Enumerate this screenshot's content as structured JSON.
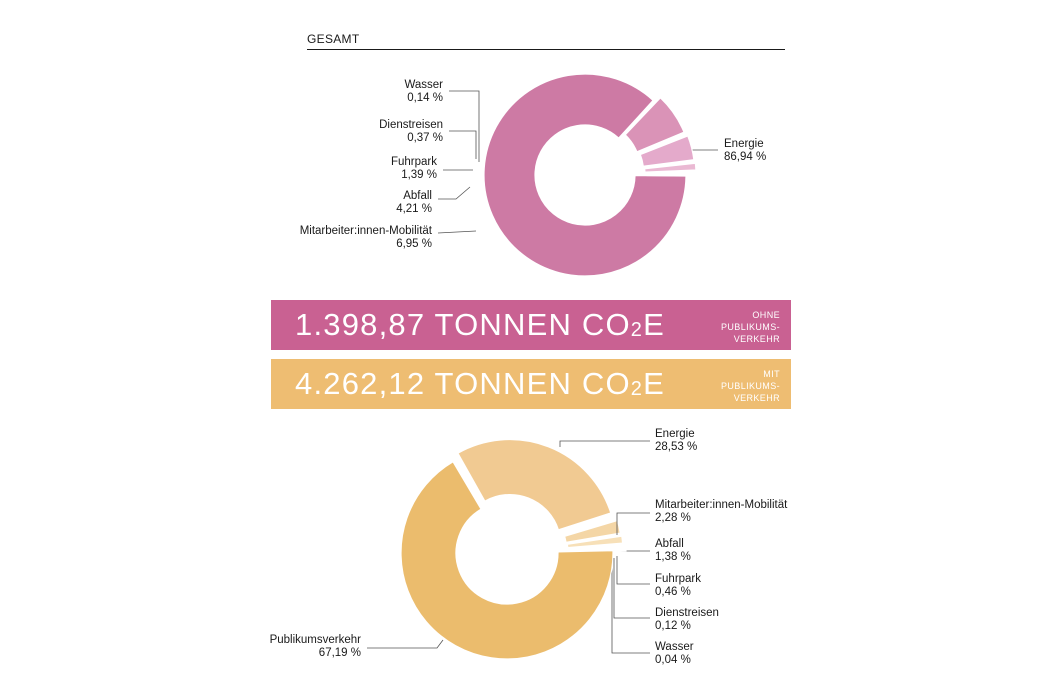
{
  "header": {
    "title": "GESAMT"
  },
  "banners": {
    "ohne": {
      "value": "1.398,87 TONNEN CO",
      "sub": "2",
      "suffix": "E",
      "note": [
        "OHNE",
        "PUBLIKUMS-",
        "VERKEHR"
      ],
      "color": "#c96192"
    },
    "mit": {
      "value": "4.262,12 TONNEN CO",
      "sub": "2",
      "suffix": "E",
      "note": [
        "MIT",
        "PUBLIKUMS-",
        "VERKEHR"
      ],
      "color": "#eebd72"
    }
  },
  "chart_data": [
    {
      "type": "pie",
      "title": "",
      "series": [
        {
          "name": "Energie",
          "label": "86,94 %",
          "value": 86.94,
          "color": "#cd7aa4"
        },
        {
          "name": "Mitarbeiter:innen-Mobilität",
          "label": "6,95 %",
          "value": 6.95,
          "color": "#da93b7"
        },
        {
          "name": "Abfall",
          "label": "4,21 %",
          "value": 4.21,
          "color": "#e4aacb"
        },
        {
          "name": "Fuhrpark",
          "label": "1,39 %",
          "value": 1.39,
          "color": "#eab9d3"
        },
        {
          "name": "Dienstreisen",
          "label": "0,37 %",
          "value": 0.37,
          "color": "#efc6dc"
        },
        {
          "name": "Wasser",
          "label": "0,14 %",
          "value": 0.14,
          "color": "#f3d3e4"
        }
      ]
    },
    {
      "type": "pie",
      "title": "",
      "series": [
        {
          "name": "Energie",
          "label": "28,53 %",
          "value": 28.53,
          "color": "#f1ca92"
        },
        {
          "name": "Mitarbeiter:innen-Mobilität",
          "label": "2,28 %",
          "value": 2.28,
          "color": "#f4d6a6"
        },
        {
          "name": "Abfall",
          "label": "1,38 %",
          "value": 1.38,
          "color": "#f7e0b8"
        },
        {
          "name": "Fuhrpark",
          "label": "0,46 %",
          "value": 0.46,
          "color": "#f9e8c8"
        },
        {
          "name": "Dienstreisen",
          "label": "0,12 %",
          "value": 0.12,
          "color": "#faeed6"
        },
        {
          "name": "Wasser",
          "label": "0,04 %",
          "value": 0.04,
          "color": "#fcf3e3"
        },
        {
          "name": "Publikumsverkehr",
          "label": "67,19 %",
          "value": 67.19,
          "color": "#ebbc6d"
        }
      ]
    }
  ]
}
